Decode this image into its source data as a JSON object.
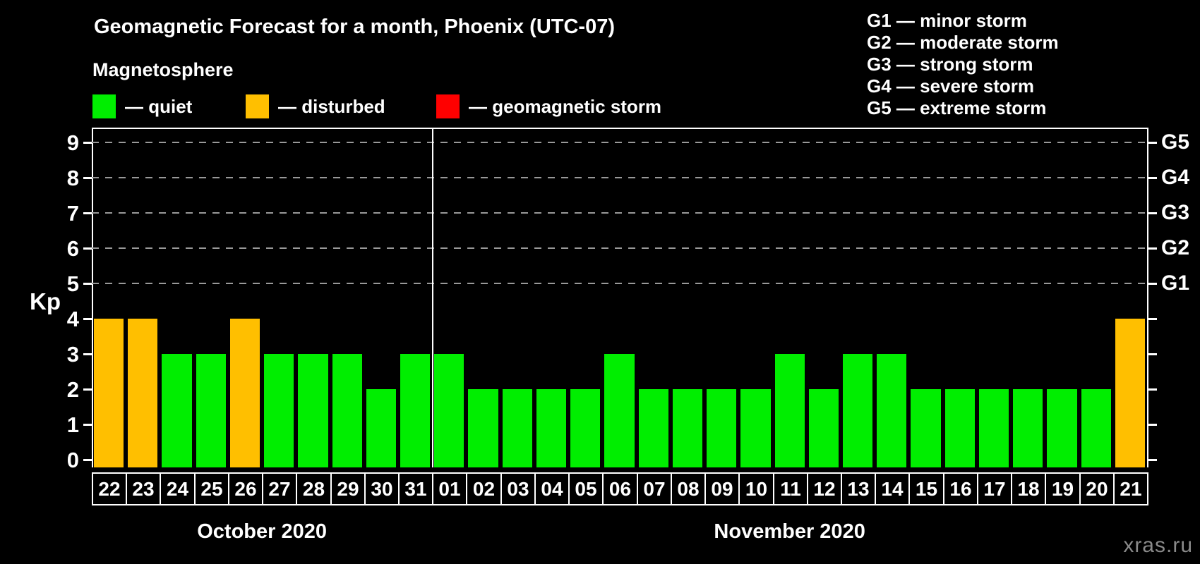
{
  "title": "Geomagnetic Forecast for a month, Phoenix (UTC-07)",
  "subtitle": "Magnetosphere",
  "watermark": "xras.ru",
  "axis": {
    "kp_label": "Kp"
  },
  "legend": [
    {
      "key": "quiet",
      "label": "— quiet",
      "color": "#00EE00"
    },
    {
      "key": "disturbed",
      "label": "— disturbed",
      "color": "#FFBF00"
    },
    {
      "key": "storm",
      "label": "— geomagnetic storm",
      "color": "#FF0000"
    }
  ],
  "g_scale": [
    {
      "desc": "G1 — minor storm"
    },
    {
      "desc": "G2 — moderate storm"
    },
    {
      "desc": "G3 — strong storm"
    },
    {
      "desc": "G4 — severe storm"
    },
    {
      "desc": "G5 — extreme storm"
    }
  ],
  "chart_data": {
    "type": "bar",
    "title": "Geomagnetic Forecast for a month, Phoenix (UTC-07)",
    "ylabel": "Kp",
    "ylim": [
      0,
      9.4
    ],
    "yticks": [
      0,
      1,
      2,
      3,
      4,
      5,
      6,
      7,
      8,
      9
    ],
    "gridlines_at_kp": [
      5,
      6,
      7,
      8,
      9
    ],
    "grid": "dashed-horizontal-at-storm-levels",
    "legend_position": "top",
    "right_axis": [
      {
        "kp": 5,
        "label": "G1"
      },
      {
        "kp": 6,
        "label": "G2"
      },
      {
        "kp": 7,
        "label": "G3"
      },
      {
        "kp": 8,
        "label": "G4"
      },
      {
        "kp": 9,
        "label": "G5"
      }
    ],
    "status_colors": {
      "quiet": "#00EE00",
      "disturbed": "#FFBF00",
      "storm": "#FF0000"
    },
    "months": [
      {
        "label": "October 2020",
        "days": [
          {
            "day": "22",
            "kp": 4,
            "status": "disturbed"
          },
          {
            "day": "23",
            "kp": 4,
            "status": "disturbed"
          },
          {
            "day": "24",
            "kp": 3,
            "status": "quiet"
          },
          {
            "day": "25",
            "kp": 3,
            "status": "quiet"
          },
          {
            "day": "26",
            "kp": 4,
            "status": "disturbed"
          },
          {
            "day": "27",
            "kp": 3,
            "status": "quiet"
          },
          {
            "day": "28",
            "kp": 3,
            "status": "quiet"
          },
          {
            "day": "29",
            "kp": 3,
            "status": "quiet"
          },
          {
            "day": "30",
            "kp": 2,
            "status": "quiet"
          },
          {
            "day": "31",
            "kp": 3,
            "status": "quiet"
          }
        ]
      },
      {
        "label": "November 2020",
        "days": [
          {
            "day": "01",
            "kp": 3,
            "status": "quiet"
          },
          {
            "day": "02",
            "kp": 2,
            "status": "quiet"
          },
          {
            "day": "03",
            "kp": 2,
            "status": "quiet"
          },
          {
            "day": "04",
            "kp": 2,
            "status": "quiet"
          },
          {
            "day": "05",
            "kp": 2,
            "status": "quiet"
          },
          {
            "day": "06",
            "kp": 3,
            "status": "quiet"
          },
          {
            "day": "07",
            "kp": 2,
            "status": "quiet"
          },
          {
            "day": "08",
            "kp": 2,
            "status": "quiet"
          },
          {
            "day": "09",
            "kp": 2,
            "status": "quiet"
          },
          {
            "day": "10",
            "kp": 2,
            "status": "quiet"
          },
          {
            "day": "11",
            "kp": 3,
            "status": "quiet"
          },
          {
            "day": "12",
            "kp": 2,
            "status": "quiet"
          },
          {
            "day": "13",
            "kp": 3,
            "status": "quiet"
          },
          {
            "day": "14",
            "kp": 3,
            "status": "quiet"
          },
          {
            "day": "15",
            "kp": 2,
            "status": "quiet"
          },
          {
            "day": "16",
            "kp": 2,
            "status": "quiet"
          },
          {
            "day": "17",
            "kp": 2,
            "status": "quiet"
          },
          {
            "day": "18",
            "kp": 2,
            "status": "quiet"
          },
          {
            "day": "19",
            "kp": 2,
            "status": "quiet"
          },
          {
            "day": "20",
            "kp": 2,
            "status": "quiet"
          },
          {
            "day": "21",
            "kp": 4,
            "status": "disturbed"
          }
        ]
      }
    ]
  }
}
